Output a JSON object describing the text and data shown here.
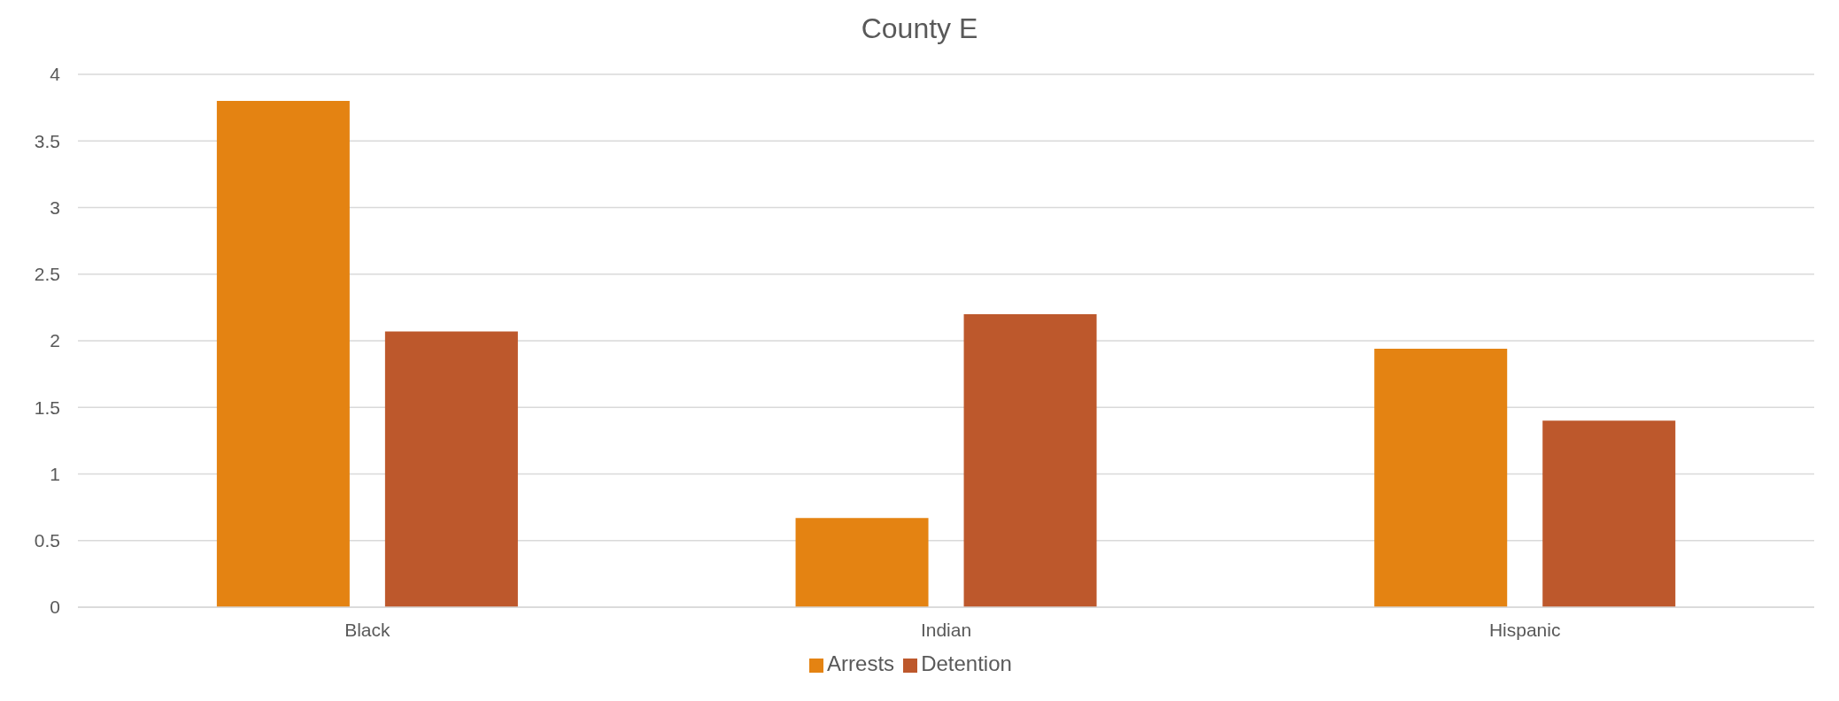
{
  "chart_data": {
    "type": "bar",
    "title": "County E",
    "categories": [
      "Black",
      "Indian",
      "Hispanic"
    ],
    "series": [
      {
        "name": "Arrests",
        "color": "#e48312",
        "values": [
          3.8,
          0.67,
          1.94
        ]
      },
      {
        "name": "Detention",
        "color": "#bd582c",
        "values": [
          2.07,
          2.2,
          1.4
        ]
      }
    ],
    "ylim": [
      0,
      4
    ],
    "yticks": [
      0,
      0.5,
      1,
      1.5,
      2,
      2.5,
      3,
      3.5,
      4
    ],
    "grid": "y",
    "legend": "bottom"
  }
}
